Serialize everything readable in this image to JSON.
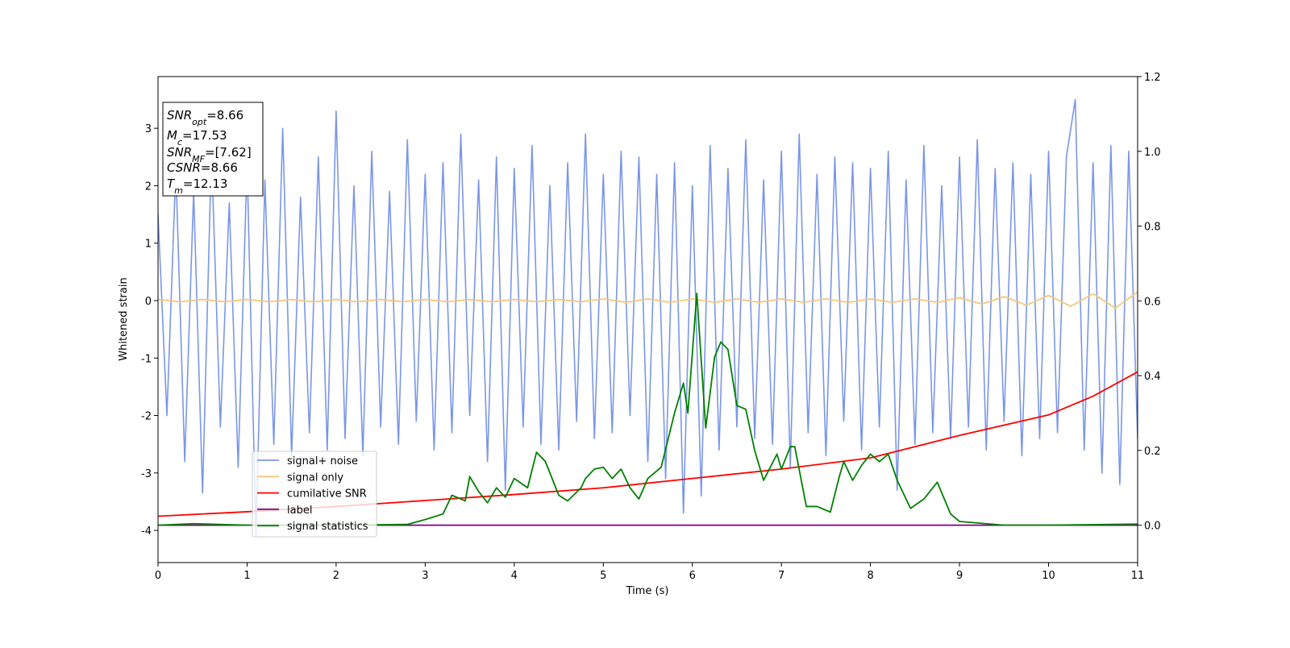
{
  "chart_data": {
    "type": "line",
    "xlabel": "Time (s)",
    "ylabel": "Whitened strain",
    "xlim": [
      0,
      11
    ],
    "ylim": [
      -4.56,
      3.9
    ],
    "y2lim": [
      -0.1,
      1.2
    ],
    "xticks": [
      0,
      1,
      2,
      3,
      4,
      5,
      6,
      7,
      8,
      9,
      10,
      11
    ],
    "yticks": [
      -4,
      -3,
      -2,
      -1,
      0,
      1,
      2,
      3
    ],
    "y2ticks": [
      {
        "value": 0,
        "label": "0.0"
      },
      0.2,
      0.4,
      0.6,
      0.8,
      {
        "value": 1,
        "label": "1.0"
      },
      1.2
    ],
    "legend": true,
    "annotations": [
      {
        "name": "SNR",
        "sub": "opt",
        "text": "=8.66"
      },
      {
        "name": "M",
        "sub": "c",
        "text": "=17.53"
      },
      {
        "name": "SNR",
        "sub": "MF",
        "text": "=[7.62]"
      },
      {
        "name": "CSNR",
        "text": "=8.66"
      },
      {
        "name": "T",
        "sub": "m",
        "text": "=12.13"
      }
    ],
    "series": [
      {
        "name": "signal+ noise",
        "color": "#7b96e8",
        "x": [
          0,
          0.1,
          0.2,
          0.3,
          0.4,
          0.5,
          0.6,
          0.7,
          0.8,
          0.9,
          1,
          1.1,
          1.2,
          1.3,
          1.4,
          1.5,
          1.6,
          1.7,
          1.8,
          1.9,
          2,
          2.1,
          2.2,
          2.3,
          2.4,
          2.5,
          2.6,
          2.7,
          2.8,
          2.9,
          3,
          3.1,
          3.2,
          3.3,
          3.4,
          3.5,
          3.6,
          3.7,
          3.8,
          3.9,
          4,
          4.1,
          4.2,
          4.3,
          4.4,
          4.5,
          4.6,
          4.7,
          4.8,
          4.9,
          5,
          5.1,
          5.2,
          5.3,
          5.4,
          5.5,
          5.6,
          5.7,
          5.8,
          5.9,
          6,
          6.1,
          6.2,
          6.3,
          6.4,
          6.5,
          6.6,
          6.7,
          6.8,
          6.9,
          7,
          7.1,
          7.2,
          7.3,
          7.4,
          7.5,
          7.6,
          7.7,
          7.8,
          7.9,
          8,
          8.1,
          8.2,
          8.3,
          8.4,
          8.5,
          8.6,
          8.7,
          8.8,
          8.9,
          9,
          9.1,
          9.2,
          9.3,
          9.4,
          9.5,
          9.6,
          9.7,
          9.8,
          9.9,
          10,
          10.1,
          10.2,
          10.3,
          10.4,
          10.5,
          10.6,
          10.7,
          10.8,
          10.9,
          11
        ],
        "values": [
          1.5,
          -2.0,
          2.3,
          -2.8,
          1.9,
          -3.35,
          2.6,
          -2.2,
          1.7,
          -2.9,
          2.4,
          -4.1,
          2.1,
          -2.5,
          3.0,
          -2.7,
          1.8,
          -2.3,
          2.5,
          -2.6,
          3.3,
          -2.4,
          2.0,
          -2.7,
          2.6,
          -2.2,
          1.9,
          -2.5,
          2.8,
          -2.1,
          2.2,
          -2.6,
          2.4,
          -2.3,
          2.9,
          -2.0,
          2.1,
          -2.8,
          2.5,
          -3.3,
          2.3,
          -2.2,
          2.7,
          -2.5,
          2.0,
          -2.6,
          2.4,
          -2.1,
          2.9,
          -2.4,
          2.2,
          -2.3,
          2.6,
          -2.0,
          2.5,
          -2.8,
          2.2,
          -3.1,
          2.4,
          -3.7,
          2.0,
          -3.4,
          2.7,
          -2.6,
          2.3,
          -2.2,
          2.8,
          -2.4,
          2.1,
          -2.5,
          2.6,
          -2.9,
          2.9,
          -2.3,
          2.2,
          -2.7,
          2.5,
          -2.1,
          2.4,
          -2.6,
          2.3,
          -2.2,
          2.6,
          -3.3,
          2.1,
          -2.5,
          2.7,
          -2.3,
          2.0,
          -2.4,
          2.5,
          -2.2,
          2.8,
          -2.6,
          2.3,
          -2.1,
          2.4,
          -2.7,
          2.2,
          -2.4,
          2.6,
          -2.3,
          2.5,
          3.5,
          -2.6,
          2.4,
          -3.0,
          2.7,
          -3.2,
          2.6,
          -2.4
        ]
      },
      {
        "name": "signal only",
        "color": "#f5c77a",
        "x": [
          0,
          0.25,
          0.5,
          0.75,
          1,
          1.25,
          1.5,
          1.75,
          2,
          2.25,
          2.5,
          2.75,
          3,
          3.25,
          3.5,
          3.75,
          4,
          4.25,
          4.5,
          4.75,
          5,
          5.25,
          5.5,
          5.75,
          6,
          6.25,
          6.5,
          6.75,
          7,
          7.25,
          7.5,
          7.75,
          8,
          8.25,
          8.5,
          8.75,
          9,
          9.25,
          9.5,
          9.75,
          10,
          10.25,
          10.5,
          10.75,
          11
        ],
        "values": [
          0.02,
          -0.02,
          0.02,
          -0.02,
          0.02,
          -0.02,
          0.02,
          -0.02,
          0.02,
          -0.02,
          0.02,
          -0.02,
          0.02,
          -0.02,
          0.02,
          -0.02,
          0.02,
          -0.02,
          0.02,
          -0.02,
          0.03,
          -0.03,
          0.03,
          -0.03,
          0.03,
          -0.03,
          0.03,
          -0.03,
          0.03,
          -0.03,
          0.03,
          -0.03,
          0.03,
          -0.03,
          0.03,
          -0.03,
          0.05,
          -0.06,
          0.07,
          -0.08,
          0.09,
          -0.1,
          0.12,
          -0.13,
          0.15
        ]
      },
      {
        "name": "cumilative SNR",
        "color": "#ff0000",
        "axis": "y2",
        "x": [
          0,
          1,
          2,
          3,
          4,
          5,
          6,
          7,
          8,
          9,
          10,
          10.5,
          11
        ],
        "values": [
          0.024,
          0.036,
          0.05,
          0.066,
          0.082,
          0.1,
          0.125,
          0.15,
          0.18,
          0.24,
          0.295,
          0.345,
          0.41
        ]
      },
      {
        "name": "label",
        "color": "#800080",
        "axis": "y2",
        "x": [
          0,
          11
        ],
        "values": [
          0,
          0
        ]
      },
      {
        "name": "signal statistics",
        "color": "#008000",
        "axis": "y2",
        "x": [
          0,
          0.4,
          1,
          2,
          2.8,
          3,
          3.2,
          3.3,
          3.45,
          3.5,
          3.6,
          3.7,
          3.8,
          3.9,
          4,
          4.15,
          4.25,
          4.35,
          4.5,
          4.6,
          4.75,
          4.8,
          4.9,
          5,
          5.1,
          5.2,
          5.3,
          5.4,
          5.5,
          5.65,
          5.8,
          5.9,
          5.95,
          6.05,
          6.15,
          6.25,
          6.32,
          6.4,
          6.5,
          6.6,
          6.7,
          6.8,
          6.95,
          7,
          7.1,
          7.15,
          7.28,
          7.4,
          7.55,
          7.65,
          7.7,
          7.8,
          7.9,
          8,
          8.1,
          8.2,
          8.3,
          8.45,
          8.6,
          8.75,
          8.9,
          9,
          9.5,
          10,
          11
        ],
        "values": [
          0,
          0.004,
          0,
          0,
          0.002,
          0.015,
          0.03,
          0.08,
          0.065,
          0.13,
          0.09,
          0.06,
          0.1,
          0.075,
          0.125,
          0.1,
          0.195,
          0.17,
          0.08,
          0.065,
          0.1,
          0.125,
          0.15,
          0.155,
          0.125,
          0.15,
          0.1,
          0.07,
          0.125,
          0.155,
          0.3,
          0.38,
          0.3,
          0.62,
          0.26,
          0.45,
          0.49,
          0.47,
          0.32,
          0.31,
          0.2,
          0.12,
          0.19,
          0.15,
          0.21,
          0.21,
          0.05,
          0.05,
          0.035,
          0.13,
          0.17,
          0.12,
          0.16,
          0.19,
          0.17,
          0.19,
          0.12,
          0.045,
          0.07,
          0.115,
          0.03,
          0.01,
          0,
          0,
          0.003
        ]
      }
    ]
  }
}
